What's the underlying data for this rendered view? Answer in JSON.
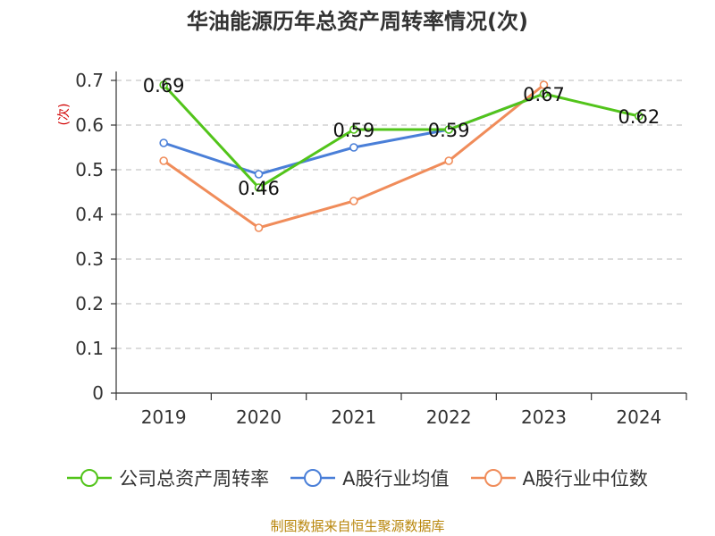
{
  "chart_data": {
    "type": "line",
    "title": "华油能源历年总资产周转率情况(次)",
    "ylabel": "(次)",
    "categories": [
      "2019",
      "2020",
      "2021",
      "2022",
      "2023",
      "2024"
    ],
    "ylim": [
      0,
      0.7
    ],
    "yticks": [
      "0",
      "0.1",
      "0.2",
      "0.3",
      "0.4",
      "0.5",
      "0.6",
      "0.7"
    ],
    "grid": true,
    "legend_position": "bottom",
    "series": [
      {
        "name": "公司总资产周转率",
        "color": "#52c41a",
        "values": [
          0.69,
          0.46,
          0.59,
          0.59,
          0.67,
          0.62
        ],
        "labels": [
          "0.69",
          "0.46",
          "0.59",
          "0.59",
          "0.67",
          "0.62"
        ]
      },
      {
        "name": "A股行业均值",
        "color": "#4a7fd8",
        "values": [
          0.56,
          0.49,
          0.55,
          0.59,
          0.67,
          null
        ]
      },
      {
        "name": "A股行业中位数",
        "color": "#f08c5a",
        "values": [
          0.52,
          0.37,
          0.43,
          0.52,
          0.69,
          null
        ]
      }
    ]
  },
  "source": "制图数据来自恒生聚源数据库"
}
